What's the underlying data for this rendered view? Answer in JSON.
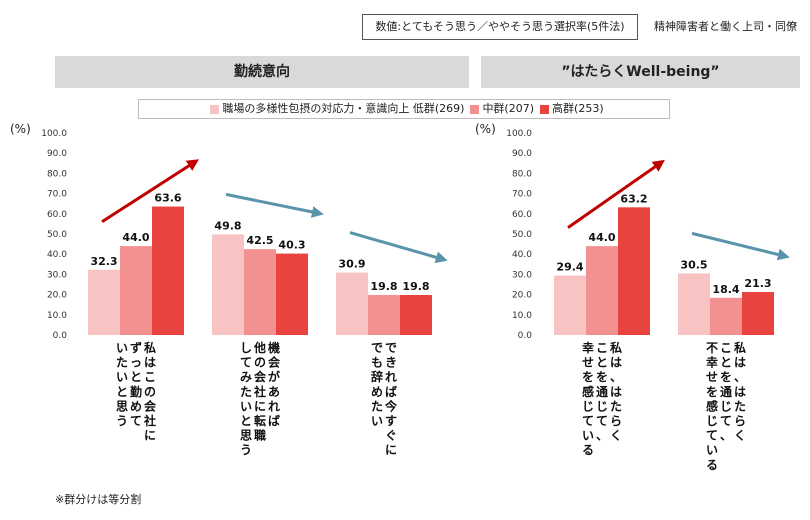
{
  "header": {
    "note": "数値:とてもそう思う／ややそう思う選択率(5件法)",
    "subtitle": "精神障害者と働く上司・同僚"
  },
  "panels": {
    "left_title": "勤続意向",
    "right_title": "”はたらくWell-being”"
  },
  "legend": {
    "low": "職場の多様性包摂の対応力・意識向上  低群(269)",
    "mid": "中群(207)",
    "high": "高群(253)"
  },
  "unit_label": "(%)",
  "footnote": "※群分けは等分割",
  "colors": {
    "low": "#f8c3c3",
    "mid": "#f2918f",
    "high": "#e8433e",
    "arrow_up": "#c00000",
    "arrow_down": "#5a94ab",
    "header_bg": "#d9d9d9"
  },
  "chart_data": [
    {
      "type": "bar",
      "title": "勤続意向",
      "ylabel": "(%)",
      "ylim": [
        0,
        100
      ],
      "yticks": [
        "0.0",
        "10.0",
        "20.0",
        "30.0",
        "40.0",
        "50.0",
        "60.0",
        "70.0",
        "80.0",
        "90.0",
        "100.0"
      ],
      "categories": [
        [
          "私はこの会社に",
          "ずっと勤めて",
          "いたいと思う"
        ],
        [
          "機会があれば",
          "他の会社に転職",
          "してみたいと思う"
        ],
        [
          "できれば今すぐに",
          "でも辞めたい"
        ]
      ],
      "series": [
        {
          "name": "低群(269)",
          "values": [
            32.3,
            49.8,
            30.9
          ]
        },
        {
          "name": "中群(207)",
          "values": [
            44.0,
            42.5,
            19.8
          ]
        },
        {
          "name": "高群(253)",
          "values": [
            63.6,
            40.3,
            19.8
          ]
        }
      ],
      "data_labels": [
        [
          "32.3",
          "44.0",
          "63.6"
        ],
        [
          "49.8",
          "42.5",
          "40.3"
        ],
        [
          "30.9",
          "19.8",
          "19.8"
        ]
      ],
      "trend": [
        "up",
        "down",
        "down"
      ]
    },
    {
      "type": "bar",
      "title": "”はたらくWell-being”",
      "ylabel": "(%)",
      "ylim": [
        0,
        100
      ],
      "yticks": [
        "0.0",
        "10.0",
        "20.0",
        "30.0",
        "40.0",
        "50.0",
        "60.0",
        "70.0",
        "80.0",
        "90.0",
        "100.0"
      ],
      "categories": [
        [
          "私は、はたらく",
          "ことを通じて、",
          "幸せを感じている"
        ],
        [
          "私は、はたらく",
          "ことを通じて、",
          "不幸せを感じている"
        ]
      ],
      "series": [
        {
          "name": "低群(269)",
          "values": [
            29.4,
            30.5
          ]
        },
        {
          "name": "中群(207)",
          "values": [
            44.0,
            18.4
          ]
        },
        {
          "name": "高群(253)",
          "values": [
            63.2,
            21.3
          ]
        }
      ],
      "data_labels": [
        [
          "29.4",
          "44.0",
          "63.2"
        ],
        [
          "30.5",
          "18.4",
          "21.3"
        ]
      ],
      "trend": [
        "up",
        "down"
      ]
    }
  ]
}
